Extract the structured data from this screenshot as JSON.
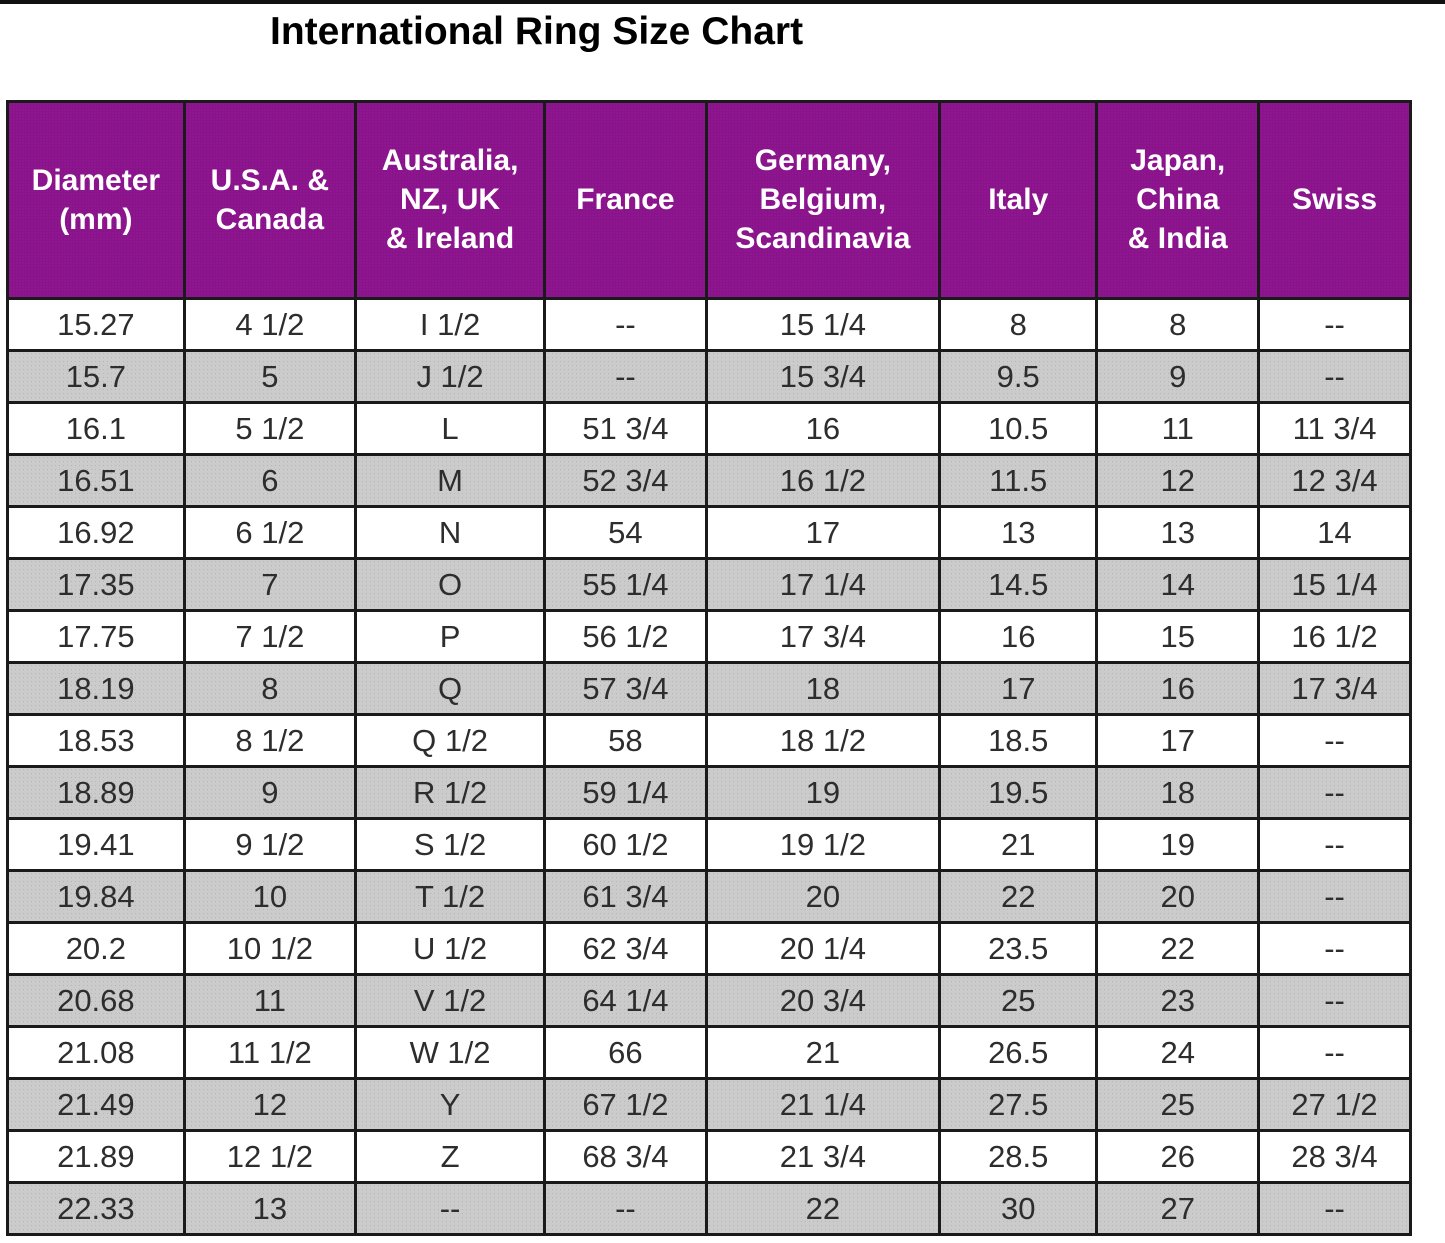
{
  "page": {
    "title": "International Ring Size Chart"
  },
  "chart_data": {
    "type": "table",
    "title": "International Ring Size Chart",
    "columns": [
      "Diameter (mm)",
      "U.S.A. & Canada",
      "Australia, NZ, UK & Ireland",
      "France",
      "Germany, Belgium, Scandinavia",
      "Italy",
      "Japan, China & India",
      "Swiss"
    ],
    "rows": [
      [
        "15.27",
        "4 1/2",
        "I 1/2",
        "--",
        "15 1/4",
        "8",
        "8",
        "--"
      ],
      [
        "15.7",
        "5",
        "J 1/2",
        "--",
        "15 3/4",
        "9.5",
        "9",
        "--"
      ],
      [
        "16.1",
        "5 1/2",
        "L",
        "51 3/4",
        "16",
        "10.5",
        "11",
        "11 3/4"
      ],
      [
        "16.51",
        "6",
        "M",
        "52 3/4",
        "16 1/2",
        "11.5",
        "12",
        "12 3/4"
      ],
      [
        "16.92",
        "6 1/2",
        "N",
        "54",
        "17",
        "13",
        "13",
        "14"
      ],
      [
        "17.35",
        "7",
        "O",
        "55 1/4",
        "17 1/4",
        "14.5",
        "14",
        "15 1/4"
      ],
      [
        "17.75",
        "7 1/2",
        "P",
        "56 1/2",
        "17 3/4",
        "16",
        "15",
        "16 1/2"
      ],
      [
        "18.19",
        "8",
        "Q",
        "57 3/4",
        "18",
        "17",
        "16",
        "17 3/4"
      ],
      [
        "18.53",
        "8 1/2",
        "Q 1/2",
        "58",
        "18 1/2",
        "18.5",
        "17",
        "--"
      ],
      [
        "18.89",
        "9",
        "R 1/2",
        "59 1/4",
        "19",
        "19.5",
        "18",
        "--"
      ],
      [
        "19.41",
        "9 1/2",
        "S 1/2",
        "60 1/2",
        "19 1/2",
        "21",
        "19",
        "--"
      ],
      [
        "19.84",
        "10",
        "T 1/2",
        "61 3/4",
        "20",
        "22",
        "20",
        "--"
      ],
      [
        "20.2",
        "10 1/2",
        "U 1/2",
        "62 3/4",
        "20 1/4",
        "23.5",
        "22",
        "--"
      ],
      [
        "20.68",
        "11",
        "V 1/2",
        "64 1/4",
        "20 3/4",
        "25",
        "23",
        "--"
      ],
      [
        "21.08",
        "11 1/2",
        "W 1/2",
        "66",
        "21",
        "26.5",
        "24",
        "--"
      ],
      [
        "21.49",
        "12",
        "Y",
        "67 1/2",
        "21 1/4",
        "27.5",
        "25",
        "27 1/2"
      ],
      [
        "21.89",
        "12 1/2",
        "Z",
        "68 3/4",
        "21 3/4",
        "28.5",
        "26",
        "28 3/4"
      ],
      [
        "22.33",
        "13",
        "--",
        "--",
        "22",
        "30",
        "27",
        "--"
      ]
    ]
  },
  "table": {
    "columns": [
      {
        "id": "diameter-mm",
        "label": "Diameter\n(mm)",
        "width_pct": 12.6
      },
      {
        "id": "usa-canada",
        "label": "U.S.A. &\nCanada",
        "width_pct": 12.2
      },
      {
        "id": "australia-nz-uk-ireland",
        "label": "Australia,\nNZ, UK\n& Ireland",
        "width_pct": 13.5
      },
      {
        "id": "france",
        "label": "France",
        "width_pct": 11.5
      },
      {
        "id": "germany-belgium-scandinavia",
        "label": "Germany,\nBelgium,\nScandinavia",
        "width_pct": 16.7
      },
      {
        "id": "italy",
        "label": "Italy",
        "width_pct": 11.2
      },
      {
        "id": "japan-china-india",
        "label": "Japan,\nChina\n& India",
        "width_pct": 11.5
      },
      {
        "id": "swiss",
        "label": "Swiss",
        "width_pct": 10.8
      }
    ],
    "colors": {
      "header_bg": "#911492",
      "header_text": "#FFFFFF",
      "alt_row_bg": "#CBCBCB",
      "row_bg": "#FFFFFF",
      "grid_border": "#1A1A1A",
      "cell_text": "#2D2D2D",
      "title_text": "#000000",
      "top_rule": "#111111"
    }
  }
}
